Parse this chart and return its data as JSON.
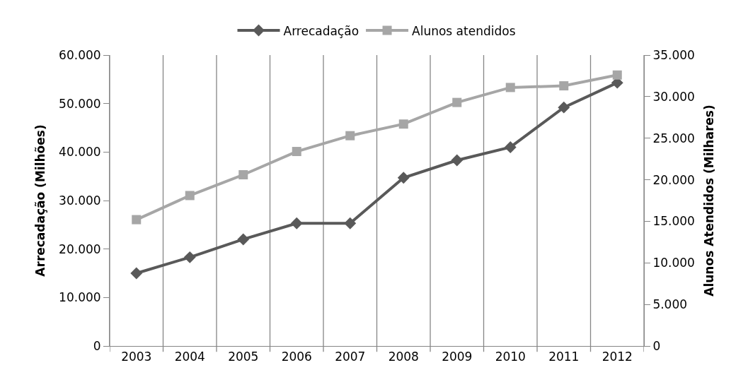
{
  "chart_data": {
    "type": "line",
    "categories": [
      "2003",
      "2004",
      "2005",
      "2006",
      "2007",
      "2008",
      "2009",
      "2010",
      "2011",
      "2012"
    ],
    "ylabel": "Arrecadação (Milhões)",
    "y2label": "Alunos Atendidos (Milhares)",
    "series": [
      {
        "name": "Arrecadação",
        "color": "#595959",
        "marker": "diamond",
        "values": [
          15000,
          18300,
          22000,
          25300,
          25300,
          34700,
          38300,
          41000,
          49200,
          54300
        ]
      },
      {
        "name": "Alunos atendidos",
        "color": "#a6a6a6",
        "marker": "square",
        "axis": "y2",
        "values": [
          15200,
          18100,
          20600,
          23400,
          25300,
          26700,
          29300,
          31100,
          31300,
          32600
        ]
      }
    ],
    "ylim": [
      0,
      60000
    ],
    "yticks": [
      {
        "value": 0,
        "label": "0"
      },
      {
        "value": 10000,
        "label": "10.000"
      },
      {
        "value": 20000,
        "label": "20.000"
      },
      {
        "value": 30000,
        "label": "30.000"
      },
      {
        "value": 40000,
        "label": "40.000"
      },
      {
        "value": 50000,
        "label": "50.000"
      },
      {
        "value": 60000,
        "label": "60.000"
      }
    ],
    "y2lim": [
      0,
      35000
    ],
    "y2ticks": [
      {
        "value": 0,
        "label": "0"
      },
      {
        "value": 5000,
        "label": "5.000"
      },
      {
        "value": 10000,
        "label": "10.000"
      },
      {
        "value": 15000,
        "label": "15.000"
      },
      {
        "value": 20000,
        "label": "20.000"
      },
      {
        "value": 25000,
        "label": "25.000"
      },
      {
        "value": 30000,
        "label": "30.000"
      },
      {
        "value": 35000,
        "label": "35.000"
      }
    ],
    "grid": "x",
    "legend": "top",
    "line_style": "solid"
  }
}
